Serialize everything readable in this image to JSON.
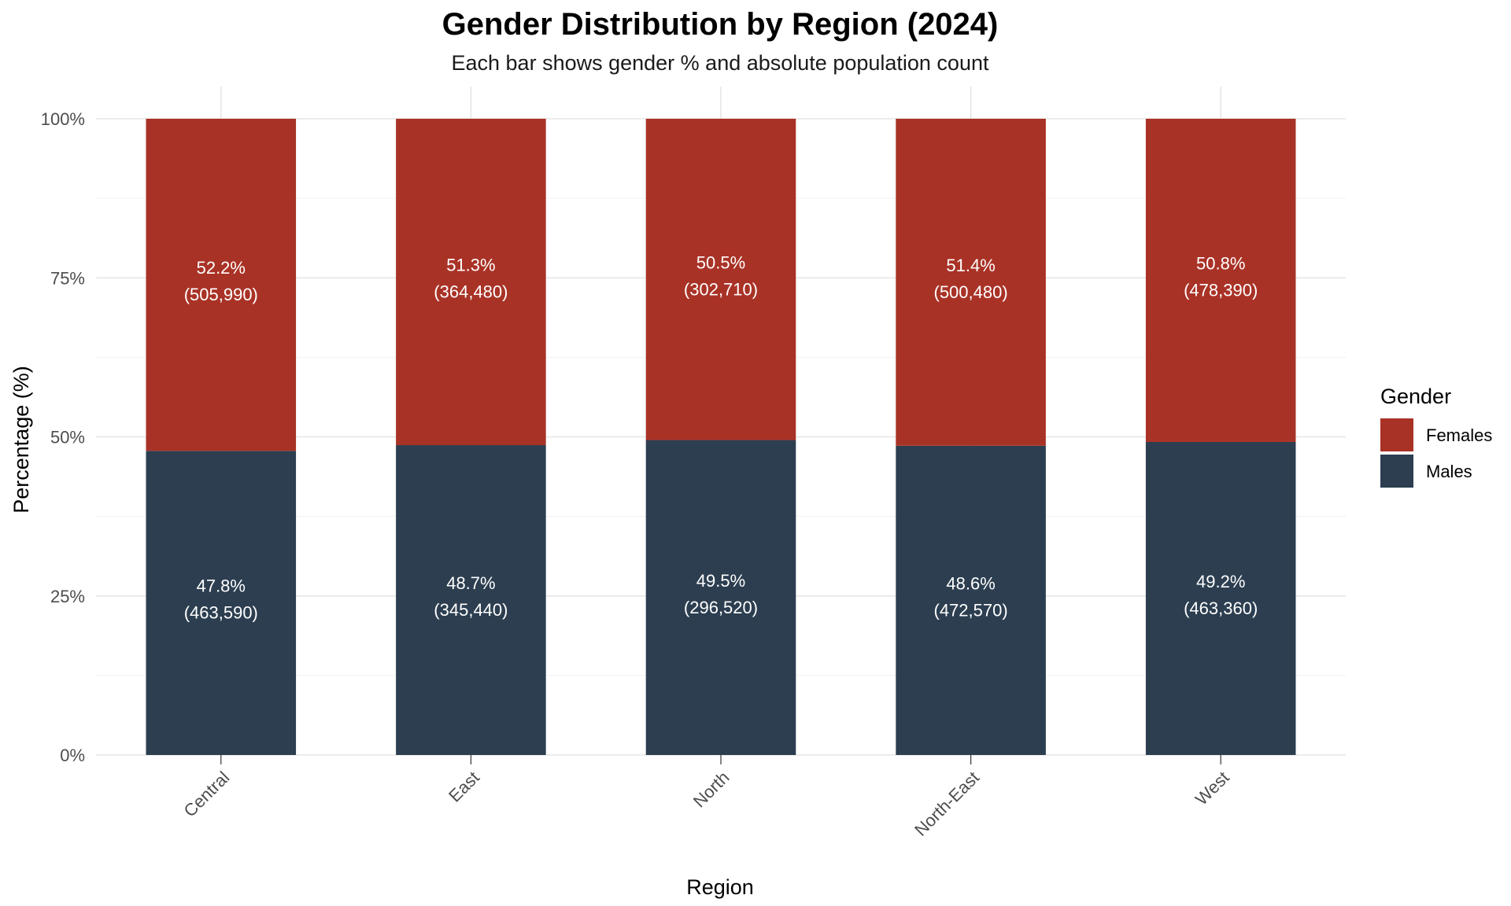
{
  "chart_data": {
    "type": "bar",
    "stacked": true,
    "title": "Gender Distribution by Region (2024)",
    "subtitle": "Each bar shows gender % and absolute population count",
    "xlabel": "Region",
    "ylabel": "Percentage (%)",
    "ylim": [
      0,
      100
    ],
    "yticks": [
      "0%",
      "25%",
      "50%",
      "75%",
      "100%"
    ],
    "grid": true,
    "legend": {
      "title": "Gender",
      "position": "right",
      "items": [
        {
          "label": "Females",
          "color": "#A93226"
        },
        {
          "label": "Males",
          "color": "#2C3E50"
        }
      ]
    },
    "categories": [
      "Central",
      "East",
      "North",
      "North-East",
      "West"
    ],
    "series": [
      {
        "name": "Males",
        "color": "#2C3E50",
        "values": [
          47.8,
          48.7,
          49.5,
          48.6,
          49.2
        ],
        "counts": [
          463590,
          345440,
          296520,
          472570,
          463360
        ],
        "labels": [
          [
            "47.8%",
            "(463,590)"
          ],
          [
            "48.7%",
            "(345,440)"
          ],
          [
            "49.5%",
            "(296,520)"
          ],
          [
            "48.6%",
            "(472,570)"
          ],
          [
            "49.2%",
            "(463,360)"
          ]
        ]
      },
      {
        "name": "Females",
        "color": "#A93226",
        "values": [
          52.2,
          51.3,
          50.5,
          51.4,
          50.8
        ],
        "counts": [
          505990,
          364480,
          302710,
          500480,
          478390
        ],
        "labels": [
          [
            "52.2%",
            "(505,990)"
          ],
          [
            "51.3%",
            "(364,480)"
          ],
          [
            "50.5%",
            "(302,710)"
          ],
          [
            "51.4%",
            "(500,480)"
          ],
          [
            "50.8%",
            "(478,390)"
          ]
        ]
      }
    ]
  }
}
